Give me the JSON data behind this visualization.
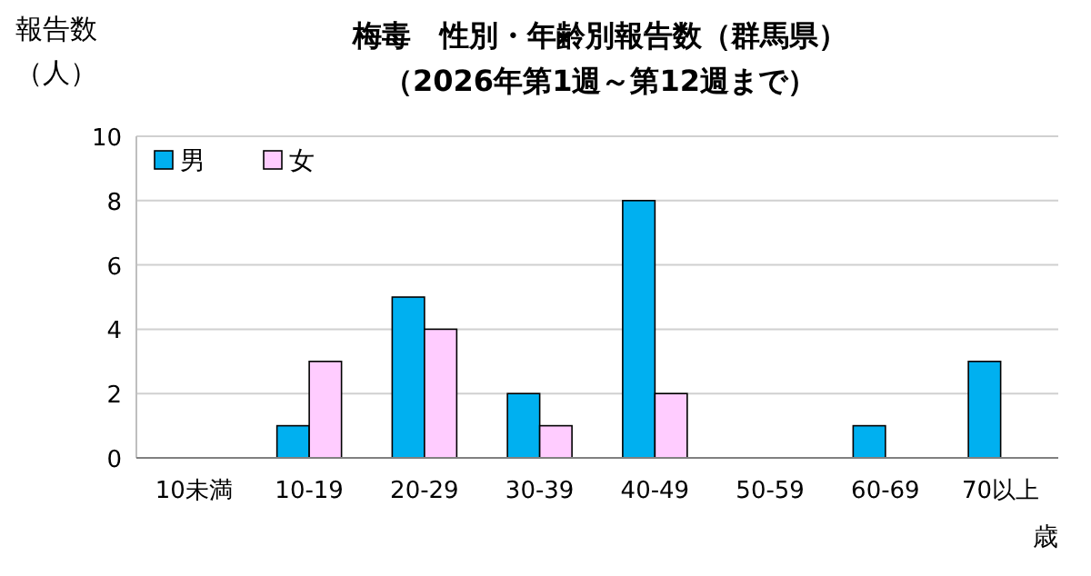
{
  "chart_data": {
    "type": "bar",
    "title": "梅毒　性別・年齢別報告数（群馬県）",
    "subtitle": "（2026年第1週～第12週まで）",
    "ylabel": "報告数（人）",
    "xlabel": "歳",
    "categories": [
      "10未満",
      "10-19",
      "20-29",
      "30-39",
      "40-49",
      "50-59",
      "60-69",
      "70以上"
    ],
    "series": [
      {
        "name": "男",
        "color": "#00b0f0",
        "values": [
          0,
          1,
          5,
          2,
          8,
          0,
          1,
          3
        ]
      },
      {
        "name": "女",
        "color": "#ffccff",
        "values": [
          0,
          3,
          4,
          1,
          2,
          0,
          0,
          0
        ]
      }
    ],
    "ylim": [
      0,
      10
    ],
    "yticks": [
      0,
      2,
      4,
      6,
      8,
      10
    ],
    "grid": "y",
    "legend": "top left"
  }
}
